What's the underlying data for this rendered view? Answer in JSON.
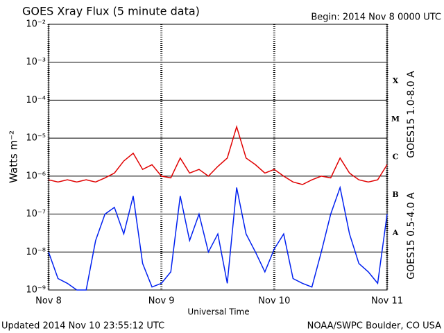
{
  "chart_data": {
    "type": "line",
    "title": "GOES Xray Flux (5 minute data)",
    "subtitle": "Begin:  2014 Nov 8 0000 UTC",
    "ylabel": "Watts m⁻²",
    "xlabel": "Universal Time",
    "footer_left": "Updated 2014 Nov 10 23:55:12 UTC",
    "footer_right": "NOAA/SWPC Boulder, CO USA",
    "flare_classes": [
      "X",
      "M",
      "C",
      "B",
      "A"
    ],
    "log_y": true,
    "grid": true,
    "xlim": [
      0,
      72
    ],
    "xticks": [
      {
        "value": 0,
        "label": "Nov 8"
      },
      {
        "value": 24,
        "label": "Nov 9"
      },
      {
        "value": 48,
        "label": "Nov 10"
      },
      {
        "value": 72,
        "label": "Nov 11"
      }
    ],
    "ylim": [
      1e-09,
      0.01
    ],
    "yticks": [
      {
        "value": 1e-09,
        "label": "10⁻⁹"
      },
      {
        "value": 1e-08,
        "label": "10⁻⁸"
      },
      {
        "value": 1e-07,
        "label": "10⁻⁷"
      },
      {
        "value": 1e-06,
        "label": "10⁻⁶"
      },
      {
        "value": 1e-05,
        "label": "10⁻⁵"
      },
      {
        "value": 0.0001,
        "label": "10⁻⁴"
      },
      {
        "value": 0.001,
        "label": "10⁻³"
      },
      {
        "value": 0.01,
        "label": "10⁻²"
      }
    ],
    "x": [
      0,
      2,
      4,
      6,
      8,
      10,
      12,
      14,
      16,
      18,
      20,
      22,
      24,
      26,
      28,
      30,
      32,
      34,
      36,
      38,
      40,
      42,
      44,
      46,
      48,
      50,
      52,
      54,
      56,
      58,
      60,
      62,
      64,
      66,
      68,
      70,
      72
    ],
    "series": [
      {
        "name": "GOES15 1.0-8.0 A",
        "color": "#e00000",
        "values": [
          8e-07,
          7e-07,
          8e-07,
          7e-07,
          8e-07,
          7e-07,
          9e-07,
          1.2e-06,
          2.5e-06,
          4e-06,
          1.5e-06,
          2e-06,
          1e-06,
          9e-07,
          3e-06,
          1.2e-06,
          1.5e-06,
          1e-06,
          1.8e-06,
          3e-06,
          2e-05,
          3e-06,
          2e-06,
          1.2e-06,
          1.5e-06,
          1e-06,
          7e-07,
          6e-07,
          8e-07,
          1e-06,
          9e-07,
          3e-06,
          1.2e-06,
          8e-07,
          7e-07,
          8e-07,
          2e-06
        ]
      },
      {
        "name": "GOES15 0.5-4.0 A",
        "color": "#0020f0",
        "values": [
          1e-08,
          2e-09,
          1.5e-09,
          1e-09,
          1e-09,
          2e-08,
          1e-07,
          1.5e-07,
          3e-08,
          3e-07,
          5e-09,
          1.2e-09,
          1.5e-09,
          3e-09,
          3e-07,
          2e-08,
          1e-07,
          1e-08,
          3e-08,
          1.5e-09,
          5e-07,
          3e-08,
          1e-08,
          3e-09,
          1.2e-08,
          3e-08,
          2e-09,
          1.5e-09,
          1.2e-09,
          1e-08,
          1e-07,
          5e-07,
          3e-08,
          5e-09,
          3e-09,
          1.5e-09,
          1e-07
        ]
      }
    ]
  }
}
